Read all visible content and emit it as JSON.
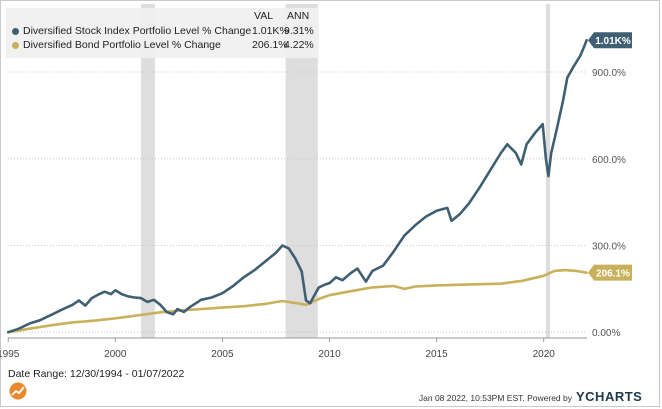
{
  "legend": {
    "header_val": "VAL",
    "header_ann": "ANN",
    "series": [
      {
        "name": "Diversified Stock Index Portfolio Level % Change",
        "val": "1.01K%",
        "ann": "9.31%",
        "color": "#3f5f73"
      },
      {
        "name": "Diversified Bond Portfolio Level % Change",
        "val": "206.1%",
        "ann": "4.22%",
        "color": "#c9b05a"
      }
    ]
  },
  "footer": {
    "date_range": "Date Range: 12/30/1994 - 01/07/2022",
    "generated": "Jan 08 2022, 10:53PM EST.  Powered by",
    "brand": "YCHARTS"
  },
  "chart_data": {
    "type": "line",
    "title": "",
    "xlabel": "",
    "ylabel": "",
    "xlim": [
      1994.99,
      2022.02
    ],
    "ylim": [
      -20,
      1080
    ],
    "x_ticks": [
      1995,
      2000,
      2005,
      2010,
      2015,
      2020
    ],
    "y_ticks": [
      0,
      300,
      600,
      900
    ],
    "y_tick_labels": [
      "0.00%",
      "300.0%",
      "600.0%",
      "900.0%"
    ],
    "grid": "horizontal dotted",
    "legend_position": "top-left",
    "recession_shading": [
      [
        2001.2,
        2001.85
      ],
      [
        2007.95,
        2009.45
      ],
      [
        2020.1,
        2020.3
      ]
    ],
    "end_labels": [
      "1.01K%",
      "206.1%"
    ],
    "series": [
      {
        "name": "Diversified Stock Index Portfolio Level % Change",
        "color": "#3f5f73",
        "x": [
          1995.0,
          1995.5,
          1996.0,
          1996.5,
          1997.0,
          1997.5,
          1998.0,
          1998.3,
          1998.6,
          1998.9,
          1999.2,
          1999.5,
          1999.8,
          2000.0,
          2000.3,
          2000.6,
          2000.9,
          2001.2,
          2001.5,
          2001.8,
          2002.1,
          2002.4,
          2002.7,
          2002.9,
          2003.2,
          2003.5,
          2003.8,
          2004.0,
          2004.5,
          2005.0,
          2005.5,
          2006.0,
          2006.5,
          2007.0,
          2007.5,
          2007.8,
          2008.1,
          2008.4,
          2008.7,
          2008.9,
          2009.1,
          2009.2,
          2009.5,
          2009.8,
          2010.0,
          2010.3,
          2010.6,
          2011.0,
          2011.3,
          2011.7,
          2012.0,
          2012.5,
          2013.0,
          2013.5,
          2014.0,
          2014.5,
          2015.0,
          2015.5,
          2015.7,
          2016.1,
          2016.5,
          2017.0,
          2017.5,
          2018.0,
          2018.3,
          2018.7,
          2018.95,
          2019.2,
          2019.6,
          2019.95,
          2020.1,
          2020.22,
          2020.35,
          2020.6,
          2020.9,
          2021.1,
          2021.4,
          2021.7,
          2021.9,
          2022.0
        ],
        "values": [
          0,
          12,
          30,
          42,
          60,
          78,
          95,
          110,
          92,
          118,
          130,
          140,
          132,
          145,
          132,
          124,
          120,
          118,
          105,
          112,
          95,
          70,
          62,
          80,
          70,
          88,
          102,
          112,
          120,
          135,
          160,
          190,
          215,
          245,
          275,
          300,
          290,
          255,
          210,
          110,
          100,
          115,
          155,
          165,
          170,
          190,
          180,
          205,
          220,
          175,
          212,
          230,
          280,
          335,
          370,
          400,
          420,
          430,
          385,
          410,
          445,
          500,
          560,
          620,
          650,
          620,
          580,
          650,
          690,
          720,
          600,
          540,
          620,
          700,
          800,
          880,
          920,
          955,
          990,
          1010
        ]
      },
      {
        "name": "Diversified Bond Portfolio Level % Change",
        "color": "#c9b05a",
        "x": [
          1995.0,
          1996.0,
          1997.0,
          1998.0,
          1999.0,
          2000.0,
          2001.0,
          2002.0,
          2003.0,
          2004.0,
          2005.0,
          2006.0,
          2007.0,
          2007.8,
          2008.5,
          2008.9,
          2009.2,
          2009.6,
          2010.0,
          2011.0,
          2012.0,
          2013.0,
          2013.5,
          2014.0,
          2015.0,
          2016.0,
          2017.0,
          2018.0,
          2019.0,
          2020.0,
          2020.5,
          2021.0,
          2021.5,
          2022.0
        ],
        "values": [
          0,
          12,
          24,
          34,
          40,
          48,
          58,
          68,
          75,
          80,
          85,
          90,
          98,
          108,
          100,
          95,
          105,
          118,
          128,
          142,
          155,
          160,
          150,
          158,
          162,
          164,
          166,
          168,
          178,
          195,
          212,
          215,
          212,
          206
        ]
      }
    ]
  }
}
